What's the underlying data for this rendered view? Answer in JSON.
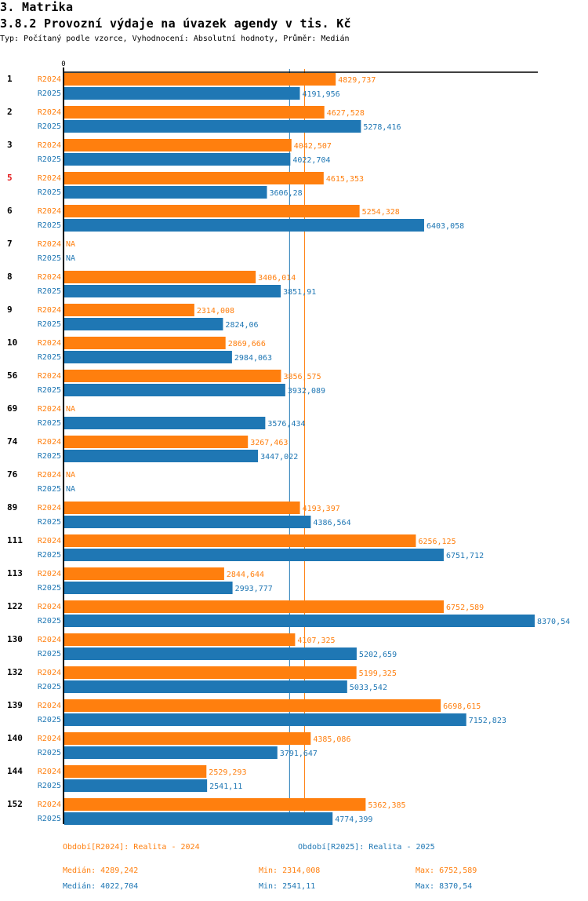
{
  "header": {
    "section": "3. Matrika",
    "title": "3.8.2 Provozní výdaje na úvazek agendy v tis. Kč",
    "subtitle": "Typ: Počítaný podle vzorce, Vyhodnocení: Absolutní hodnoty, Průměr: Medián"
  },
  "colors": {
    "R2024": "#ff7f0e",
    "R2025": "#1f77b4",
    "highlight_category": "#e31a1c",
    "axis": "#000000"
  },
  "chart_data": {
    "type": "bar",
    "orientation": "horizontal",
    "title": "3.8.2 Provozní výdaje na úvazek agendy v tis. Kč",
    "xlabel": "",
    "ylabel": "",
    "x_tick_labels": [
      "0"
    ],
    "xlim": [
      0,
      8370.54
    ],
    "grid": false,
    "legend_position": "bottom",
    "highlight_category": "5",
    "categories": [
      "1",
      "2",
      "3",
      "5",
      "6",
      "7",
      "8",
      "9",
      "10",
      "56",
      "69",
      "74",
      "76",
      "89",
      "111",
      "113",
      "122",
      "130",
      "132",
      "139",
      "140",
      "144",
      "152"
    ],
    "series": [
      {
        "name": "R2024",
        "legend": "Období[R2024]: Realita - 2024",
        "values": [
          4829.737,
          4627.528,
          4042.507,
          4615.353,
          5254.328,
          null,
          3406.014,
          2314.008,
          2869.666,
          3856.575,
          null,
          3267.463,
          null,
          4193.397,
          6256.125,
          2844.644,
          6752.589,
          4107.325,
          5199.325,
          6698.615,
          4385.086,
          2529.293,
          5362.385
        ],
        "labels": [
          "4829,737",
          "4627,528",
          "4042,507",
          "4615,353",
          "5254,328",
          "NA",
          "3406,014",
          "2314,008",
          "2869,666",
          "3856,575",
          "NA",
          "3267,463",
          "NA",
          "4193,397",
          "6256,125",
          "2844,644",
          "6752,589",
          "4107,325",
          "5199,325",
          "6698,615",
          "4385,086",
          "2529,293",
          "5362,385"
        ],
        "median": 4289.242,
        "stats": {
          "median": "Medián: 4289,242",
          "min": "Min: 2314,008",
          "max": "Max: 6752,589"
        }
      },
      {
        "name": "R2025",
        "legend": "Období[R2025]: Realita - 2025",
        "values": [
          4191.956,
          5278.416,
          4022.704,
          3606.28,
          6403.058,
          null,
          3851.91,
          2824.06,
          2984.063,
          3932.089,
          3576.434,
          3447.022,
          null,
          4386.564,
          6751.712,
          2993.777,
          8370.54,
          5202.659,
          5033.542,
          7152.823,
          3791.647,
          2541.11,
          4774.399
        ],
        "labels": [
          "4191,956",
          "5278,416",
          "4022,704",
          "3606,28",
          "6403,058",
          "NA",
          "3851,91",
          "2824,06",
          "2984,063",
          "3932,089",
          "3576,434",
          "3447,022",
          "NA",
          "4386,564",
          "6751,712",
          "2993,777",
          "8370,54",
          "5202,659",
          "5033,542",
          "7152,823",
          "3791,647",
          "2541,11",
          "4774,399"
        ],
        "median": 4022.704,
        "stats": {
          "median": "Medián: 4022,704",
          "min": "Min: 2541,11",
          "max": "Max: 8370,54"
        }
      }
    ]
  }
}
